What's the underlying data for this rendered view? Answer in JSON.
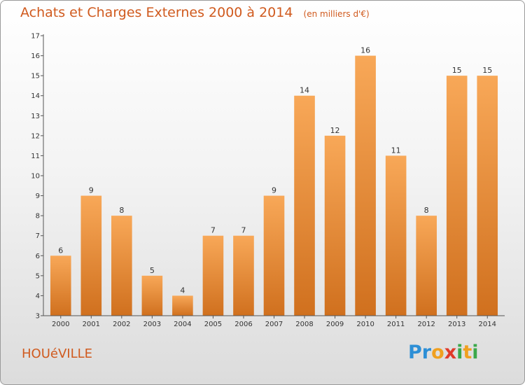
{
  "header": {
    "title": "Achats et Charges Externes 2000 à 2014",
    "subtitle": "(en milliers d'€)"
  },
  "footer": {
    "commune": "HOUéVILLE",
    "brand": "Proxiti",
    "brand_letters": [
      {
        "char": "P",
        "color": "#2d8fd6"
      },
      {
        "char": "r",
        "color": "#2d8fd6"
      },
      {
        "char": "o",
        "color": "#f0a020"
      },
      {
        "char": "x",
        "color": "#e03a2a"
      },
      {
        "char": "i",
        "color": "#3aa84a"
      },
      {
        "char": "t",
        "color": "#f0a020"
      },
      {
        "char": "i",
        "color": "#3aa84a"
      }
    ]
  },
  "chart_data": {
    "type": "bar",
    "title": "Achats et Charges Externes 2000 à 2014",
    "subtitle": "(en milliers d'€)",
    "xlabel": "",
    "ylabel": "",
    "categories": [
      "2000",
      "2001",
      "2002",
      "2003",
      "2004",
      "2005",
      "2006",
      "2007",
      "2008",
      "2009",
      "2010",
      "2011",
      "2012",
      "2013",
      "2014"
    ],
    "values": [
      6,
      9,
      8,
      5,
      4,
      7,
      7,
      9,
      14,
      12,
      16,
      11,
      8,
      15,
      15
    ],
    "ylim": [
      3,
      17
    ],
    "yticks": [
      3,
      4,
      5,
      6,
      7,
      8,
      9,
      10,
      11,
      12,
      13,
      14,
      15,
      16,
      17
    ],
    "grid": false,
    "legend": "none",
    "bar_color_top": "#f8a858",
    "bar_color_bottom": "#d0701e",
    "axis_color": "#555555"
  }
}
